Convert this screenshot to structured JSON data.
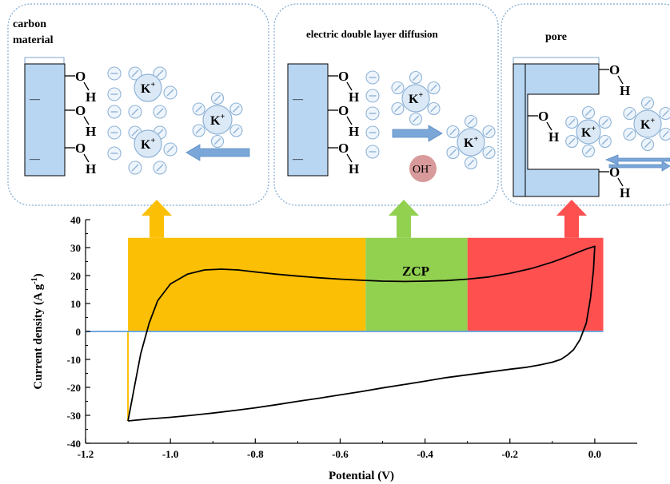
{
  "panels": {
    "left": {
      "title_line1": "carbon",
      "title_line2": "material",
      "surface_charge": "—",
      "oh_o": "O",
      "oh_h": "H",
      "ion": "K",
      "ion_sup": "+"
    },
    "middle": {
      "title": "electric double layer diffusion",
      "surface_charge": "—",
      "oh_o": "O",
      "oh_h": "H",
      "ion": "K",
      "ion_sup": "+",
      "hydroxide": "OH",
      "hydroxide_sup": "-"
    },
    "right": {
      "title": "pore",
      "oh_o": "O",
      "oh_h": "H",
      "ion": "K",
      "ion_sup": "+"
    }
  },
  "colors": {
    "panel_border": "#7ea7cf",
    "electrode_fill": "#b8d6f2",
    "ion_fill": "#dbe9f7",
    "ion_stroke": "#8fb3d6",
    "arrow_blue": "#7aa6d8",
    "hydroxide_fill": "#d89a9a",
    "region_orange": "#fbbf05",
    "region_green": "#92d050",
    "region_red": "#ff5050",
    "zero_line": "#6fa8dc",
    "curve": "#000000"
  },
  "chart_data": {
    "type": "line",
    "xlabel": "Potential (V)",
    "ylabel": "Current density (A g",
    "ylabel_sup": "-1",
    "ylabel_end": ")",
    "xlim": [
      -1.2,
      0.1
    ],
    "ylim": [
      -40,
      40
    ],
    "xticks": [
      -1.2,
      -1.0,
      -0.8,
      -0.6,
      -0.4,
      -0.2,
      0.0
    ],
    "xtick_labels": [
      "-1.2",
      "-1.0",
      "-0.8",
      "-0.6",
      "-0.4",
      "-0.2",
      "0.0"
    ],
    "yticks": [
      -40,
      -30,
      -20,
      -10,
      0,
      10,
      20,
      30,
      40
    ],
    "ytick_labels": [
      "-40",
      "-30",
      "-20",
      "-10",
      "0",
      "10",
      "20",
      "30",
      "40"
    ],
    "regions": [
      {
        "x0": -1.1,
        "x1": -0.54,
        "color": "#fbbf05"
      },
      {
        "x0": -0.54,
        "x1": -0.3,
        "color": "#92d050",
        "label": "ZCP"
      },
      {
        "x0": -0.3,
        "x1": 0.02,
        "color": "#ff5050"
      }
    ],
    "region_top": 33.5,
    "series": [
      {
        "x": [
          -1.1,
          -1.085,
          -1.07,
          -1.05,
          -1.03,
          -1.0,
          -0.96,
          -0.92,
          -0.88,
          -0.84,
          -0.8,
          -0.75,
          -0.7,
          -0.65,
          -0.6,
          -0.55,
          -0.5,
          -0.45,
          -0.4,
          -0.35,
          -0.3,
          -0.25,
          -0.2,
          -0.15,
          -0.1,
          -0.07,
          -0.04,
          -0.02,
          0.0,
          -0.003,
          -0.01,
          -0.02,
          -0.035,
          -0.05,
          -0.065,
          -0.08,
          -0.1,
          -0.13,
          -0.16,
          -0.2,
          -0.25,
          -0.3,
          -0.35,
          -0.4,
          -0.45,
          -0.5,
          -0.55,
          -0.6,
          -0.65,
          -0.7,
          -0.75,
          -0.8,
          -0.85,
          -0.9,
          -0.95,
          -1.0,
          -1.05,
          -1.08,
          -1.1
        ],
        "y": [
          -32,
          -20,
          -8,
          3,
          11,
          17,
          20.5,
          22,
          22.3,
          22,
          21.3,
          20.5,
          19.8,
          19.2,
          18.7,
          18.3,
          18.0,
          17.9,
          18.0,
          18.2,
          18.7,
          19.5,
          20.8,
          22.5,
          24.8,
          26.5,
          28.3,
          29.5,
          30.5,
          22,
          12,
          3,
          -3,
          -6.5,
          -8.5,
          -10,
          -11,
          -12,
          -12.8,
          -13.5,
          -14.5,
          -15.5,
          -16.5,
          -17.8,
          -19,
          -20.2,
          -21.5,
          -22.7,
          -23.9,
          -25,
          -26.2,
          -27.3,
          -28.3,
          -29.2,
          -30,
          -30.7,
          -31.3,
          -31.7,
          -32
        ]
      }
    ]
  }
}
